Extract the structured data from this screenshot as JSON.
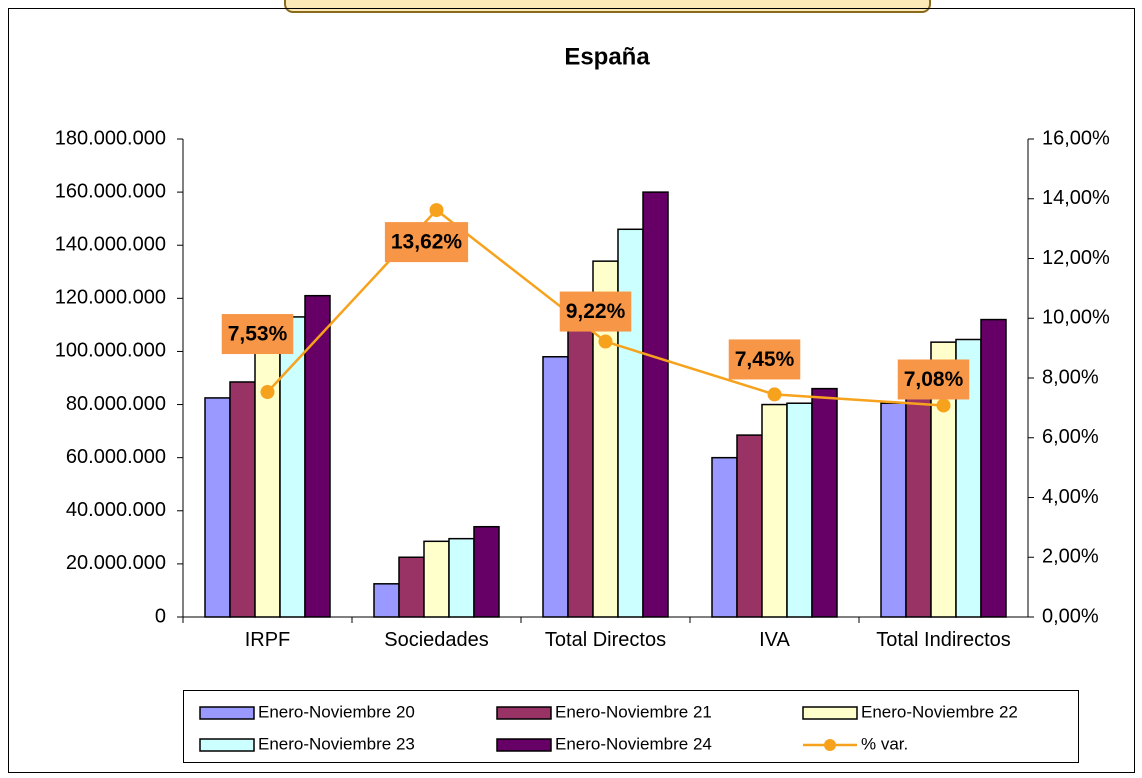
{
  "chart_data": {
    "type": "bar",
    "title": "España",
    "categories": [
      "IRPF",
      "Sociedades",
      "Total Directos",
      "IVA",
      "Total Indirectos"
    ],
    "series": [
      {
        "name": "Enero-Noviembre 20",
        "color": "#9999ff",
        "values": [
          82500000,
          12500000,
          98000000,
          60000000,
          80500000
        ]
      },
      {
        "name": "Enero-Noviembre 21",
        "color": "#993366",
        "values": [
          88500000,
          22500000,
          115000000,
          68500000,
          91000000
        ]
      },
      {
        "name": "Enero-Noviembre 22",
        "color": "#ffffcc",
        "values": [
          108000000,
          28500000,
          134000000,
          80000000,
          103500000
        ]
      },
      {
        "name": "Enero-Noviembre 23",
        "color": "#ccffff",
        "values": [
          113000000,
          29500000,
          146000000,
          80500000,
          104500000
        ]
      },
      {
        "name": "Enero-Noviembre 24",
        "color": "#660066",
        "values": [
          121000000,
          34000000,
          160000000,
          86000000,
          112000000
        ]
      },
      {
        "name": "% var.",
        "type": "line",
        "axis": "y2",
        "color": "#f7a21c",
        "values": [
          7.53,
          13.62,
          9.22,
          7.45,
          7.08
        ],
        "value_labels": [
          "7,53%",
          "13,62%",
          "9,22%",
          "7,45%",
          "7,08%"
        ]
      }
    ],
    "ylim": [
      0,
      180000000
    ],
    "yticks": [
      0,
      {
        "value": 20000000,
        "label": "20.000.000"
      },
      {
        "value": 40000000,
        "label": "40.000.000"
      },
      {
        "value": 60000000,
        "label": "60.000.000"
      },
      {
        "value": 80000000,
        "label": "80.000.000"
      },
      {
        "value": 100000000,
        "label": "100.000.000"
      },
      {
        "value": 120000000,
        "label": "120.000.000"
      },
      {
        "value": 140000000,
        "label": "140.000.000"
      },
      {
        "value": 160000000,
        "label": "160.000.000"
      },
      {
        "value": 180000000,
        "label": "180.000.000"
      }
    ],
    "y2lim": [
      0,
      16
    ],
    "y2ticks": [
      {
        "value": 0,
        "label": "0,00%"
      },
      {
        "value": 2,
        "label": "2,00%"
      },
      {
        "value": 4,
        "label": "4,00%"
      },
      {
        "value": 6,
        "label": "6,00%"
      },
      {
        "value": 8,
        "label": "8,00%"
      },
      {
        "value": 10,
        "label": "10,00%"
      },
      {
        "value": 12,
        "label": "12,00%"
      },
      {
        "value": 14,
        "label": "14,00%"
      },
      {
        "value": 16,
        "label": "16,00%"
      }
    ],
    "grid": false,
    "legend": "bottom"
  }
}
